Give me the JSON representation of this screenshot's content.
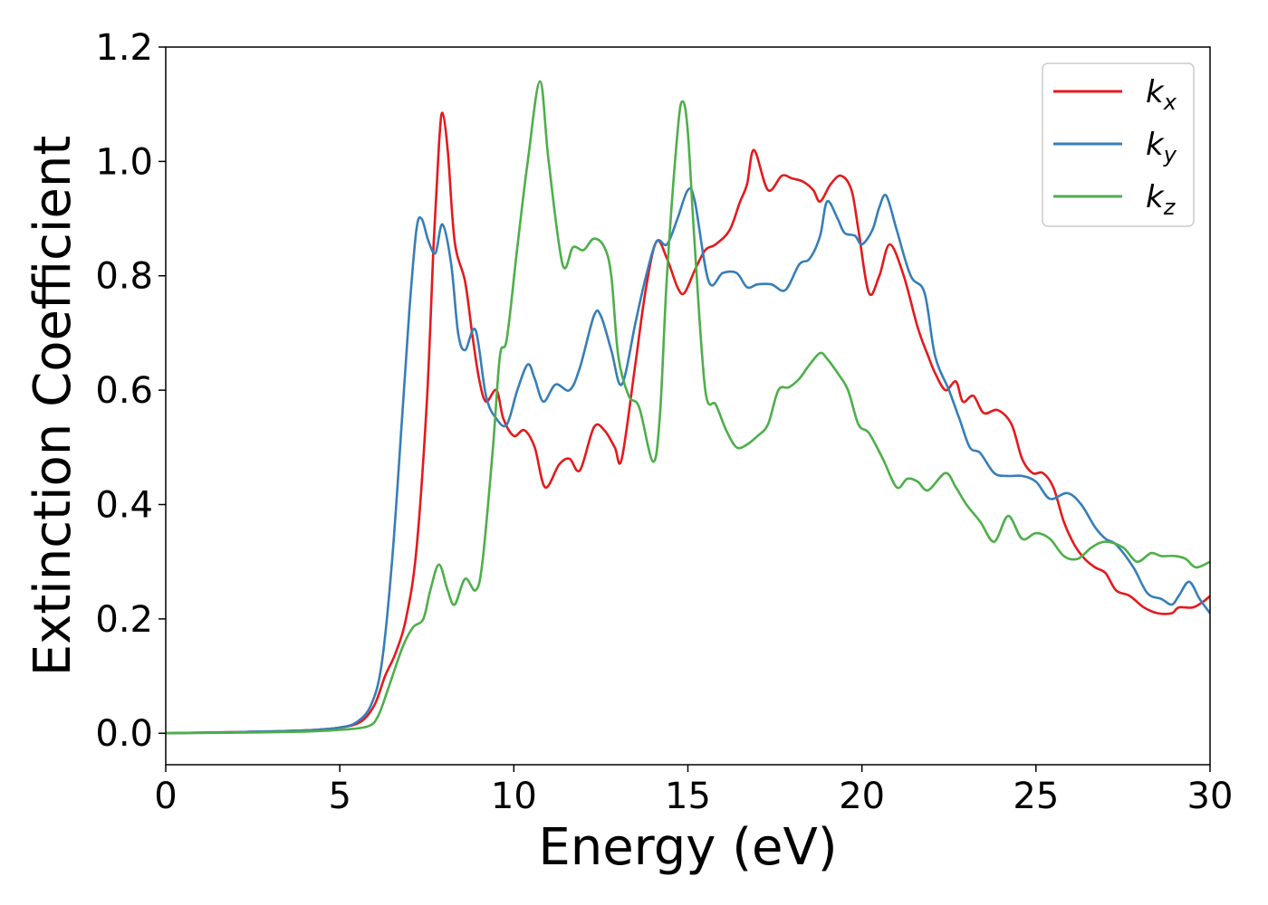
{
  "chart_data": {
    "type": "line",
    "xlabel": "Energy (eV)",
    "ylabel": "Extinction Coefficient",
    "xlim": [
      0,
      30
    ],
    "ylim": [
      -0.055,
      1.2
    ],
    "xticks": [
      0,
      5,
      10,
      15,
      20,
      25,
      30
    ],
    "yticks": [
      0.0,
      0.2,
      0.4,
      0.6,
      0.8,
      1.0,
      1.2
    ],
    "xtick_labels": [
      "0",
      "5",
      "10",
      "15",
      "20",
      "25",
      "30"
    ],
    "ytick_labels": [
      "0.0",
      "0.2",
      "0.4",
      "0.6",
      "0.8",
      "1.0",
      "1.2"
    ],
    "grid": false,
    "legend_position": "top-right",
    "series": [
      {
        "name": "k",
        "subscript": "x",
        "color": "#e41a1c",
        "points": [
          [
            0,
            0
          ],
          [
            2,
            0.002
          ],
          [
            4,
            0.005
          ],
          [
            5,
            0.01
          ],
          [
            5.6,
            0.02
          ],
          [
            6,
            0.05
          ],
          [
            6.3,
            0.1
          ],
          [
            6.6,
            0.14
          ],
          [
            6.9,
            0.2
          ],
          [
            7.2,
            0.32
          ],
          [
            7.5,
            0.58
          ],
          [
            7.7,
            0.86
          ],
          [
            7.85,
            1.03
          ],
          [
            7.95,
            1.085
          ],
          [
            8.1,
            1.02
          ],
          [
            8.3,
            0.86
          ],
          [
            8.6,
            0.79
          ],
          [
            8.8,
            0.7
          ],
          [
            9.0,
            0.62
          ],
          [
            9.2,
            0.58
          ],
          [
            9.5,
            0.6
          ],
          [
            9.7,
            0.55
          ],
          [
            10.0,
            0.52
          ],
          [
            10.3,
            0.53
          ],
          [
            10.6,
            0.5
          ],
          [
            10.9,
            0.43
          ],
          [
            11.3,
            0.47
          ],
          [
            11.6,
            0.48
          ],
          [
            11.9,
            0.46
          ],
          [
            12.3,
            0.535
          ],
          [
            12.6,
            0.53
          ],
          [
            12.9,
            0.5
          ],
          [
            13.1,
            0.48
          ],
          [
            13.5,
            0.65
          ],
          [
            13.8,
            0.78
          ],
          [
            14.1,
            0.86
          ],
          [
            14.4,
            0.83
          ],
          [
            14.7,
            0.78
          ],
          [
            14.9,
            0.77
          ],
          [
            15.2,
            0.81
          ],
          [
            15.5,
            0.845
          ],
          [
            15.8,
            0.855
          ],
          [
            16.2,
            0.88
          ],
          [
            16.5,
            0.93
          ],
          [
            16.7,
            0.96
          ],
          [
            16.9,
            1.02
          ],
          [
            17.3,
            0.95
          ],
          [
            17.7,
            0.975
          ],
          [
            18.0,
            0.97
          ],
          [
            18.3,
            0.965
          ],
          [
            18.6,
            0.95
          ],
          [
            18.8,
            0.93
          ],
          [
            19.1,
            0.96
          ],
          [
            19.4,
            0.975
          ],
          [
            19.7,
            0.95
          ],
          [
            19.9,
            0.88
          ],
          [
            20.2,
            0.77
          ],
          [
            20.5,
            0.8
          ],
          [
            20.8,
            0.855
          ],
          [
            21.2,
            0.8
          ],
          [
            21.6,
            0.71
          ],
          [
            21.9,
            0.66
          ],
          [
            22.1,
            0.63
          ],
          [
            22.4,
            0.6
          ],
          [
            22.7,
            0.615
          ],
          [
            22.9,
            0.58
          ],
          [
            23.2,
            0.59
          ],
          [
            23.5,
            0.56
          ],
          [
            23.9,
            0.565
          ],
          [
            24.3,
            0.54
          ],
          [
            24.6,
            0.48
          ],
          [
            24.9,
            0.455
          ],
          [
            25.2,
            0.455
          ],
          [
            25.5,
            0.43
          ],
          [
            25.8,
            0.37
          ],
          [
            26.1,
            0.33
          ],
          [
            26.4,
            0.305
          ],
          [
            26.7,
            0.29
          ],
          [
            27.0,
            0.28
          ],
          [
            27.3,
            0.25
          ],
          [
            27.7,
            0.24
          ],
          [
            28.1,
            0.22
          ],
          [
            28.5,
            0.21
          ],
          [
            28.9,
            0.21
          ],
          [
            29.1,
            0.22
          ],
          [
            29.5,
            0.22
          ],
          [
            29.8,
            0.23
          ],
          [
            30,
            0.24
          ]
        ]
      },
      {
        "name": "k",
        "subscript": "y",
        "color": "#377eb8",
        "points": [
          [
            0,
            0
          ],
          [
            2,
            0.002
          ],
          [
            4,
            0.005
          ],
          [
            5,
            0.01
          ],
          [
            5.5,
            0.02
          ],
          [
            5.9,
            0.05
          ],
          [
            6.2,
            0.12
          ],
          [
            6.5,
            0.3
          ],
          [
            6.8,
            0.56
          ],
          [
            7.0,
            0.74
          ],
          [
            7.2,
            0.88
          ],
          [
            7.35,
            0.9
          ],
          [
            7.55,
            0.86
          ],
          [
            7.75,
            0.84
          ],
          [
            7.95,
            0.89
          ],
          [
            8.2,
            0.82
          ],
          [
            8.4,
            0.7
          ],
          [
            8.6,
            0.67
          ],
          [
            8.9,
            0.705
          ],
          [
            9.2,
            0.59
          ],
          [
            9.5,
            0.55
          ],
          [
            9.8,
            0.54
          ],
          [
            10.1,
            0.6
          ],
          [
            10.4,
            0.645
          ],
          [
            10.6,
            0.62
          ],
          [
            10.85,
            0.58
          ],
          [
            11.2,
            0.61
          ],
          [
            11.6,
            0.6
          ],
          [
            11.9,
            0.64
          ],
          [
            12.3,
            0.73
          ],
          [
            12.5,
            0.73
          ],
          [
            12.8,
            0.67
          ],
          [
            13.1,
            0.61
          ],
          [
            13.5,
            0.72
          ],
          [
            13.8,
            0.8
          ],
          [
            14.1,
            0.86
          ],
          [
            14.4,
            0.855
          ],
          [
            14.7,
            0.9
          ],
          [
            15.0,
            0.95
          ],
          [
            15.2,
            0.93
          ],
          [
            15.6,
            0.79
          ],
          [
            16.0,
            0.805
          ],
          [
            16.4,
            0.805
          ],
          [
            16.7,
            0.78
          ],
          [
            17.0,
            0.785
          ],
          [
            17.4,
            0.785
          ],
          [
            17.8,
            0.775
          ],
          [
            18.2,
            0.82
          ],
          [
            18.5,
            0.83
          ],
          [
            18.8,
            0.87
          ],
          [
            19.0,
            0.93
          ],
          [
            19.3,
            0.9
          ],
          [
            19.5,
            0.875
          ],
          [
            19.8,
            0.87
          ],
          [
            20.0,
            0.855
          ],
          [
            20.3,
            0.88
          ],
          [
            20.5,
            0.92
          ],
          [
            20.7,
            0.94
          ],
          [
            21.0,
            0.88
          ],
          [
            21.4,
            0.8
          ],
          [
            21.8,
            0.77
          ],
          [
            22.1,
            0.66
          ],
          [
            22.5,
            0.6
          ],
          [
            22.8,
            0.55
          ],
          [
            23.1,
            0.5
          ],
          [
            23.4,
            0.49
          ],
          [
            23.8,
            0.455
          ],
          [
            24.2,
            0.45
          ],
          [
            24.6,
            0.45
          ],
          [
            25.0,
            0.44
          ],
          [
            25.4,
            0.41
          ],
          [
            25.9,
            0.42
          ],
          [
            26.3,
            0.4
          ],
          [
            26.7,
            0.36
          ],
          [
            27.0,
            0.34
          ],
          [
            27.3,
            0.33
          ],
          [
            27.8,
            0.29
          ],
          [
            28.2,
            0.245
          ],
          [
            28.6,
            0.235
          ],
          [
            28.9,
            0.225
          ],
          [
            29.1,
            0.24
          ],
          [
            29.4,
            0.265
          ],
          [
            29.7,
            0.235
          ],
          [
            30,
            0.21
          ]
        ]
      },
      {
        "name": "k",
        "subscript": "z",
        "color": "#4daf4a",
        "points": [
          [
            0,
            0
          ],
          [
            2,
            0.001
          ],
          [
            4,
            0.003
          ],
          [
            5,
            0.006
          ],
          [
            5.8,
            0.012
          ],
          [
            6.1,
            0.03
          ],
          [
            6.4,
            0.08
          ],
          [
            6.8,
            0.15
          ],
          [
            7.1,
            0.185
          ],
          [
            7.4,
            0.2
          ],
          [
            7.6,
            0.25
          ],
          [
            7.85,
            0.295
          ],
          [
            8.1,
            0.25
          ],
          [
            8.3,
            0.225
          ],
          [
            8.6,
            0.27
          ],
          [
            8.9,
            0.25
          ],
          [
            9.1,
            0.3
          ],
          [
            9.4,
            0.5
          ],
          [
            9.6,
            0.66
          ],
          [
            9.8,
            0.69
          ],
          [
            10.1,
            0.85
          ],
          [
            10.4,
            1.0
          ],
          [
            10.75,
            1.14
          ],
          [
            11.0,
            1.0
          ],
          [
            11.4,
            0.82
          ],
          [
            11.7,
            0.85
          ],
          [
            12.0,
            0.845
          ],
          [
            12.3,
            0.865
          ],
          [
            12.6,
            0.85
          ],
          [
            12.8,
            0.8
          ],
          [
            13.0,
            0.66
          ],
          [
            13.3,
            0.59
          ],
          [
            13.6,
            0.57
          ],
          [
            14.0,
            0.475
          ],
          [
            14.2,
            0.56
          ],
          [
            14.4,
            0.8
          ],
          [
            14.7,
            1.05
          ],
          [
            14.85,
            1.105
          ],
          [
            15.0,
            1.05
          ],
          [
            15.2,
            0.85
          ],
          [
            15.5,
            0.6
          ],
          [
            15.8,
            0.575
          ],
          [
            16.1,
            0.53
          ],
          [
            16.4,
            0.5
          ],
          [
            16.7,
            0.505
          ],
          [
            17.0,
            0.52
          ],
          [
            17.3,
            0.54
          ],
          [
            17.6,
            0.6
          ],
          [
            17.9,
            0.605
          ],
          [
            18.2,
            0.62
          ],
          [
            18.5,
            0.645
          ],
          [
            18.8,
            0.665
          ],
          [
            19.0,
            0.655
          ],
          [
            19.3,
            0.63
          ],
          [
            19.6,
            0.6
          ],
          [
            19.9,
            0.54
          ],
          [
            20.2,
            0.525
          ],
          [
            20.6,
            0.48
          ],
          [
            21.0,
            0.43
          ],
          [
            21.3,
            0.445
          ],
          [
            21.6,
            0.44
          ],
          [
            21.9,
            0.425
          ],
          [
            22.4,
            0.455
          ],
          [
            22.7,
            0.43
          ],
          [
            23.0,
            0.4
          ],
          [
            23.4,
            0.37
          ],
          [
            23.8,
            0.335
          ],
          [
            24.2,
            0.38
          ],
          [
            24.6,
            0.34
          ],
          [
            25.0,
            0.35
          ],
          [
            25.4,
            0.34
          ],
          [
            25.8,
            0.31
          ],
          [
            26.2,
            0.305
          ],
          [
            26.6,
            0.325
          ],
          [
            27.0,
            0.335
          ],
          [
            27.5,
            0.325
          ],
          [
            27.9,
            0.3
          ],
          [
            28.3,
            0.315
          ],
          [
            28.6,
            0.31
          ],
          [
            29.0,
            0.31
          ],
          [
            29.3,
            0.305
          ],
          [
            29.6,
            0.29
          ],
          [
            30,
            0.3
          ]
        ]
      }
    ]
  }
}
